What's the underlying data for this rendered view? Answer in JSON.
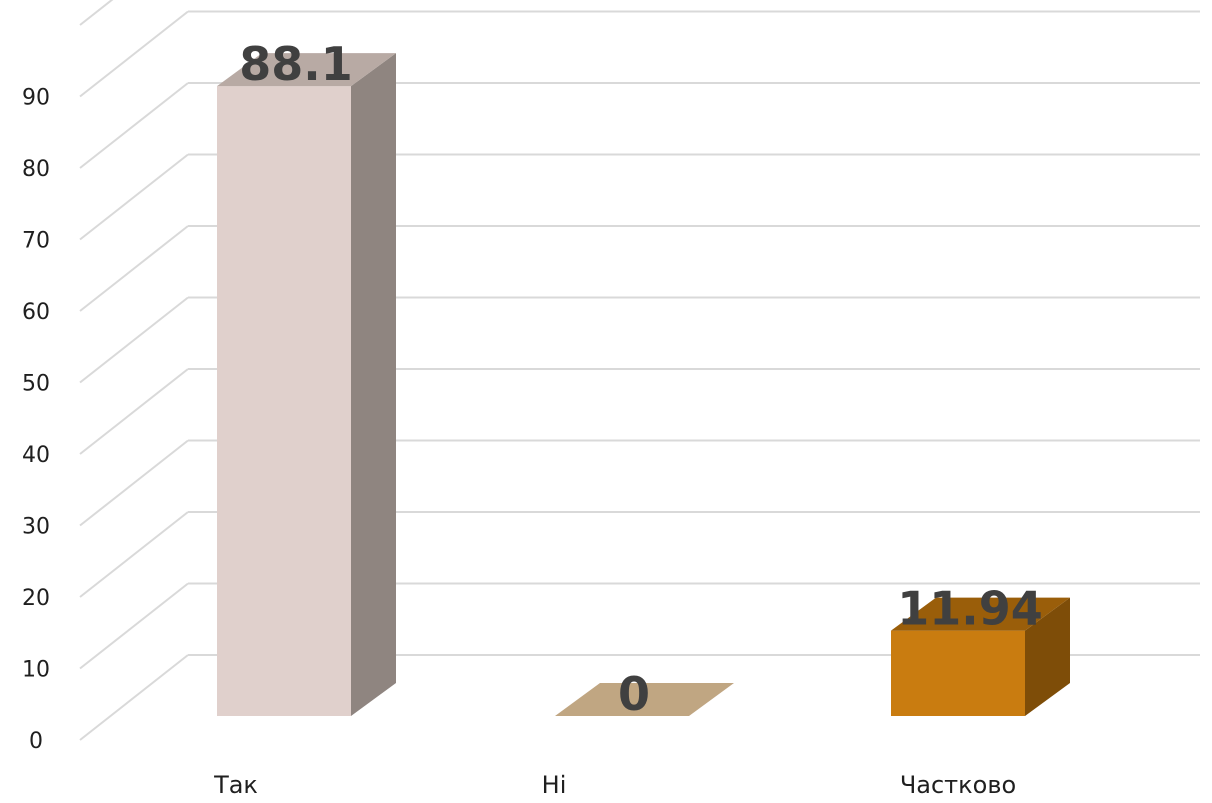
{
  "chart_data": {
    "type": "bar",
    "style": "3d-column",
    "categories": [
      "Так",
      "Ні",
      "Частково"
    ],
    "values": [
      88.1,
      0,
      11.94
    ],
    "data_labels": [
      "88.1",
      "0",
      "11.94"
    ],
    "yticks": [
      "0",
      "10",
      "20",
      "30",
      "40",
      "50",
      "60",
      "70",
      "80",
      "90"
    ],
    "ylim": [
      0,
      100
    ],
    "grid": true,
    "legend": "none",
    "colors": [
      {
        "front": "#e0d0cc",
        "side": "#8f8580",
        "top": "#b8aaa4"
      },
      {
        "front": "#c0a682",
        "side": "#9c8464",
        "top": "#c0a682"
      },
      {
        "front": "#c97c10",
        "side": "#7e4d08",
        "top": "#9a5e0a"
      }
    ]
  }
}
